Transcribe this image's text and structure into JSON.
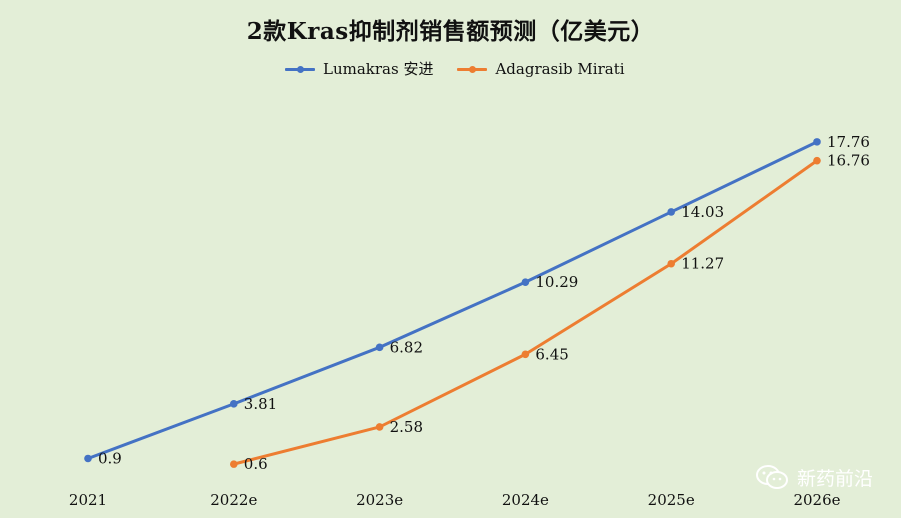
{
  "title": "2款Kras抑制剂销售额预测（亿美元）",
  "watermark": "新药前沿",
  "chart_data": {
    "type": "line",
    "title": "2款Kras抑制剂销售额预测（亿美元）",
    "categories": [
      "2021",
      "2022e",
      "2023e",
      "2024e",
      "2025e",
      "2026e"
    ],
    "series": [
      {
        "name": "Lumakras 安进",
        "color": "#4472c4",
        "values": [
          0.9,
          3.81,
          6.82,
          10.29,
          14.03,
          17.76
        ]
      },
      {
        "name": "Adagrasib Mirati",
        "color": "#ed7d31",
        "values": [
          null,
          0.6,
          2.58,
          6.45,
          11.27,
          16.76
        ]
      }
    ],
    "ylim": [
      0,
      19
    ],
    "grid": false,
    "legend_position": "top"
  }
}
